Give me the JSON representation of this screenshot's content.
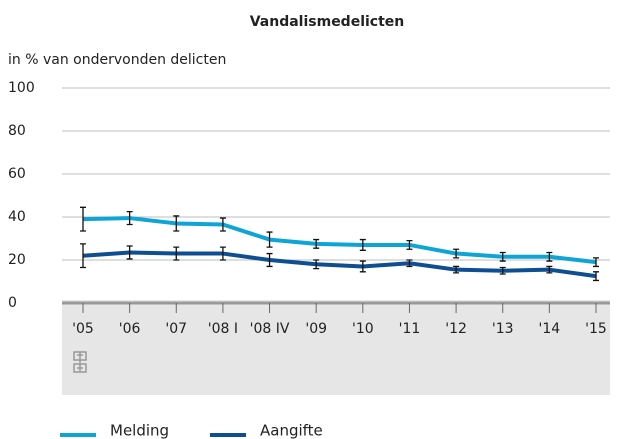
{
  "chart_data": {
    "type": "line",
    "title": "Vandalismedelicten",
    "y_label": "in % van ondervonden delicten",
    "categories": [
      "'05",
      "'06",
      "'07",
      "'08 I",
      "'08 IV",
      "'09",
      "'10",
      "'11",
      "'12",
      "'13",
      "'14",
      "'15"
    ],
    "series": [
      {
        "name": "Melding",
        "color": "#0ea5d6",
        "values": [
          39,
          39.5,
          37,
          36.5,
          29.5,
          27.5,
          27,
          27,
          23,
          21.5,
          21.5,
          19
        ],
        "errors": [
          5.5,
          3,
          3.5,
          3,
          3.5,
          2,
          2.5,
          2,
          2,
          2,
          2,
          2
        ]
      },
      {
        "name": "Aangifte",
        "color": "#0e4f92",
        "values": [
          22,
          23.5,
          23,
          23,
          20,
          18,
          17,
          18.5,
          15.5,
          15,
          15.5,
          12.5
        ],
        "errors": [
          5.5,
          3,
          3,
          3,
          3,
          2,
          2.5,
          1.5,
          1.5,
          1.5,
          1.5,
          2
        ]
      }
    ],
    "ylim": [
      0,
      100
    ],
    "yticks": [
      0,
      20,
      40,
      60,
      80,
      100
    ],
    "grid": true,
    "legend": "bottom"
  }
}
